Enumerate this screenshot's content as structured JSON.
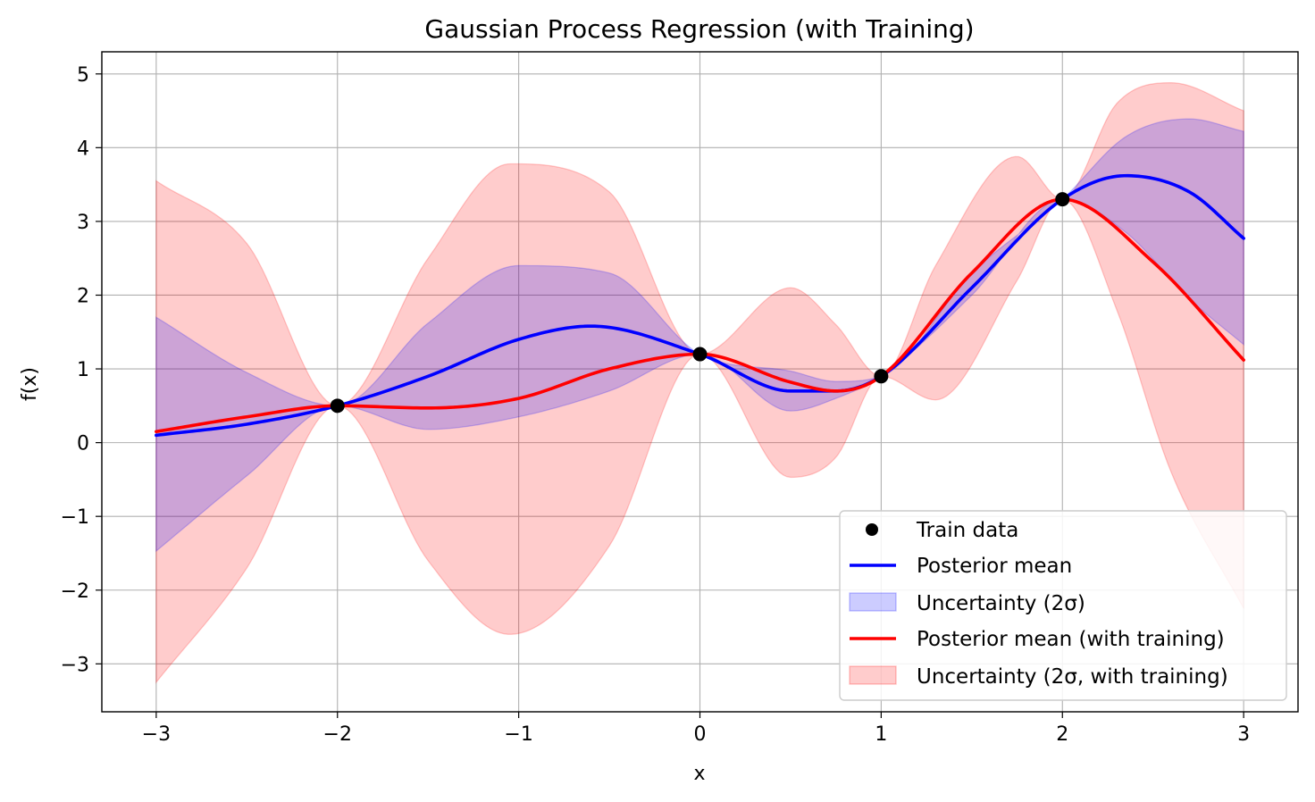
{
  "chart_data": {
    "type": "line",
    "title": "Gaussian Process Regression (with Training)",
    "xlabel": "x",
    "ylabel": "f(x)",
    "xlim": [
      -3.3,
      3.3
    ],
    "ylim": [
      -3.65,
      5.3
    ],
    "grid": true,
    "legend_position": "lower-right",
    "x_ticks": [
      -3,
      -2,
      -1,
      0,
      1,
      2,
      3
    ],
    "x_tick_labels": [
      "−3",
      "−2",
      "−1",
      "0",
      "1",
      "2",
      "3"
    ],
    "y_ticks": [
      -3,
      -2,
      -1,
      0,
      1,
      2,
      3,
      4,
      5
    ],
    "y_tick_labels": [
      "−3",
      "−2",
      "−1",
      "0",
      "1",
      "2",
      "3",
      "4",
      "5"
    ],
    "train_data": {
      "name": "Train data",
      "color": "#000000",
      "x": [
        -2,
        0,
        1,
        2
      ],
      "y": [
        0.5,
        1.2,
        0.9,
        3.3
      ]
    },
    "posterior_mean": {
      "name": "Posterior mean",
      "color": "#0000ff",
      "x": [
        -3,
        -2.5,
        -2,
        -1.5,
        -1,
        -0.6,
        0,
        0.5,
        0.75,
        1,
        1.5,
        2,
        2.35,
        2.7,
        3
      ],
      "y": [
        0.1,
        0.25,
        0.5,
        0.9,
        1.4,
        1.58,
        1.2,
        0.7,
        0.7,
        0.9,
        2.1,
        3.3,
        3.62,
        3.4,
        2.77
      ]
    },
    "uncertainty": {
      "name": "Uncertainty (2σ)",
      "color": "#0000ff",
      "x": [
        -3,
        -2.5,
        -2,
        -1.5,
        -1,
        -0.5,
        0,
        0.5,
        0.75,
        1,
        1.5,
        2,
        2.35,
        2.7,
        3
      ],
      "lower": [
        -1.47,
        -0.45,
        0.5,
        0.18,
        0.35,
        0.7,
        1.2,
        0.43,
        0.6,
        0.9,
        2.0,
        3.3,
        2.85,
        1.95,
        1.33
      ],
      "upper": [
        1.7,
        0.95,
        0.5,
        1.62,
        2.4,
        2.3,
        1.2,
        0.97,
        0.83,
        0.9,
        2.3,
        3.3,
        4.15,
        4.39,
        4.22
      ]
    },
    "posterior_mean_training": {
      "name": "Posterior mean (with training)",
      "color": "#ff0000",
      "x": [
        -3,
        -2.5,
        -2,
        -1.5,
        -1,
        -0.5,
        0,
        0.5,
        0.75,
        1,
        1.5,
        2,
        2.5,
        3
      ],
      "y": [
        0.15,
        0.35,
        0.5,
        0.47,
        0.6,
        1.0,
        1.2,
        0.82,
        0.7,
        0.9,
        2.3,
        3.3,
        2.45,
        1.12
      ]
    },
    "uncertainty_training": {
      "name": "Uncertainty (2σ, with training)",
      "color": "#ff0000",
      "x": [
        -3,
        -2.5,
        -2,
        -1.5,
        -1.05,
        -0.5,
        0,
        0.5,
        0.75,
        1,
        1.3,
        1.75,
        2,
        2.3,
        2.6,
        3
      ],
      "lower": [
        -3.25,
        -1.7,
        0.5,
        -1.6,
        -2.6,
        -1.4,
        1.2,
        -0.47,
        -0.2,
        0.9,
        0.58,
        2.2,
        3.3,
        1.8,
        -0.4,
        -2.25
      ],
      "upper": [
        3.55,
        2.7,
        0.5,
        2.5,
        3.78,
        3.4,
        1.2,
        2.1,
        1.6,
        0.9,
        2.4,
        3.88,
        3.3,
        4.6,
        4.88,
        4.5
      ]
    }
  }
}
